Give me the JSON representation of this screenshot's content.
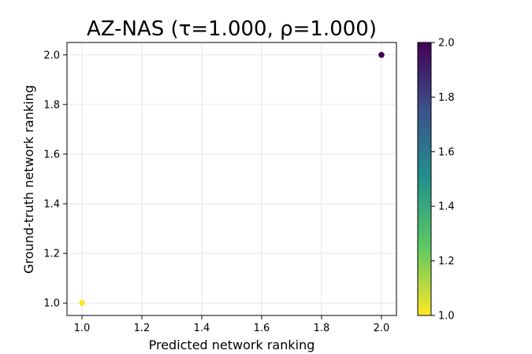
{
  "chart_data": {
    "type": "scatter",
    "title": "AZ-NAS (τ=1.000, ρ=1.000)",
    "xlabel": "Predicted network ranking",
    "ylabel": "Ground-truth network ranking",
    "xlim": [
      0.95,
      2.05
    ],
    "ylim": [
      0.95,
      2.05
    ],
    "xticks": [
      "1.0",
      "1.2",
      "1.4",
      "1.6",
      "1.8",
      "2.0"
    ],
    "yticks": [
      "1.0",
      "1.2",
      "1.4",
      "1.6",
      "1.8",
      "2.0"
    ],
    "grid": true,
    "colormap": "viridis",
    "points": [
      {
        "x": 1.0,
        "y": 1.0,
        "c": 1.0,
        "color": "#fde725"
      },
      {
        "x": 2.0,
        "y": 2.0,
        "c": 2.0,
        "color": "#440154"
      }
    ],
    "colorbar": {
      "range": [
        1.0,
        2.0
      ],
      "ticks": [
        "1.0",
        "1.2",
        "1.4",
        "1.6",
        "1.8",
        "2.0"
      ]
    }
  }
}
